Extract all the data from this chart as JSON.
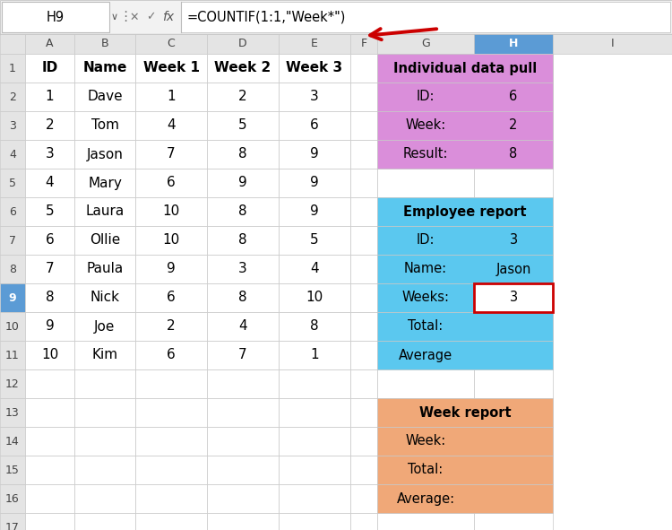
{
  "formula_bar_cell": "H9",
  "formula_bar_formula": "=COUNTIF(1:1,\"Week*\")",
  "main_headers": [
    "ID",
    "Name",
    "Week 1",
    "Week 2",
    "Week 3"
  ],
  "main_rows": [
    [
      "1",
      "Dave",
      "1",
      "2",
      "3"
    ],
    [
      "2",
      "Tom",
      "4",
      "5",
      "6"
    ],
    [
      "3",
      "Jason",
      "7",
      "8",
      "9"
    ],
    [
      "4",
      "Mary",
      "6",
      "9",
      "9"
    ],
    [
      "5",
      "Laura",
      "10",
      "8",
      "9"
    ],
    [
      "6",
      "Ollie",
      "10",
      "8",
      "5"
    ],
    [
      "7",
      "Paula",
      "9",
      "3",
      "4"
    ],
    [
      "8",
      "Nick",
      "6",
      "8",
      "10"
    ],
    [
      "9",
      "Joe",
      "2",
      "4",
      "8"
    ],
    [
      "10",
      "Kim",
      "6",
      "7",
      "1"
    ]
  ],
  "idp_title": "Individual data pull",
  "idp_bg": "#DA8EDA",
  "idp_rows": [
    [
      "ID:",
      "6"
    ],
    [
      "Week:",
      "2"
    ],
    [
      "Result:",
      "8"
    ]
  ],
  "er_title": "Employee report",
  "er_bg": "#5BC8EF",
  "er_rows": [
    [
      "ID:",
      "3"
    ],
    [
      "Name:",
      "Jason"
    ],
    [
      "Weeks:",
      "3"
    ],
    [
      "Total:",
      ""
    ],
    [
      "Average",
      ""
    ]
  ],
  "wr_title": "Week report",
  "wr_bg": "#F0A878",
  "wr_rows": [
    [
      "Week:",
      ""
    ],
    [
      "Total:",
      ""
    ],
    [
      "Average:",
      ""
    ]
  ],
  "arrow_color": "#CC0000",
  "grid_color": "#C8C8C8",
  "header_bg": "#E4E4E4",
  "sel_col_bg": "#C0D4F0",
  "sel_row_bg": "#D8E8B8",
  "white": "#FFFFFF",
  "red_box_color": "#CC0000"
}
